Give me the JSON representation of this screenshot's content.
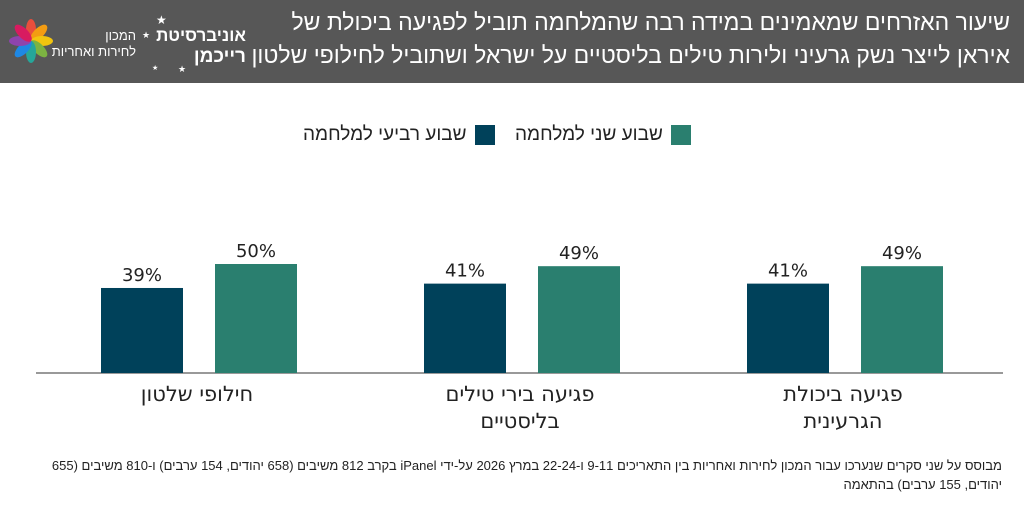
{
  "header": {
    "title": "שיעור האזרחים שמאמינים במידה רבה שהמלחמה תוביל לפגיעה ביכולת של איראן לייצר נשק גרעיני ולירות טילים בליסטיים על ישראל ושתוביל לחילופי שלטון",
    "logo_university": "אוניברסיטת",
    "logo_university_name": "רייכמן",
    "logo_institute_line1": "המכון",
    "logo_institute_line2": "לחירות ואחריות"
  },
  "colors": {
    "header_bg": "#575757",
    "series_week4": "#00415a",
    "series_week2": "#2a7f6f"
  },
  "chart_data": {
    "type": "bar",
    "categories": [
      "פגיעה ביכולת הגרעינית",
      "פגיעה בירי טילים בליסטיים",
      "חילופי שלטון"
    ],
    "category_lines": [
      [
        "פגיעה ביכולת",
        "הגרעינית"
      ],
      [
        "פגיעה בירי טילים",
        "בליסטיים"
      ],
      [
        "חילופי שלטון"
      ]
    ],
    "series": [
      {
        "name": "שבוע רביעי למלחמה",
        "values": [
          41,
          41,
          39
        ],
        "labels": [
          "41%",
          "41%",
          "39%"
        ],
        "color": "#00415a"
      },
      {
        "name": "שבוע שני למלחמה",
        "values": [
          49,
          49,
          50
        ],
        "labels": [
          "49%",
          "49%",
          "50%"
        ],
        "color": "#2a7f6f"
      }
    ],
    "legend_position": "top-center",
    "grid": false,
    "ylim": [
      0,
      100
    ]
  },
  "footnote": "מבוסס על שני סקרים שנערכו עבור המכון לחירות ואחריות בין התאריכים 9-11 ו-22-24 במרץ 2026 על-ידי iPanel בקרב 812 משיבים (658 יהודים, 154 ערבים) ו-810 משיבים (655 יהודים, 155 ערבים) בהתאמה"
}
